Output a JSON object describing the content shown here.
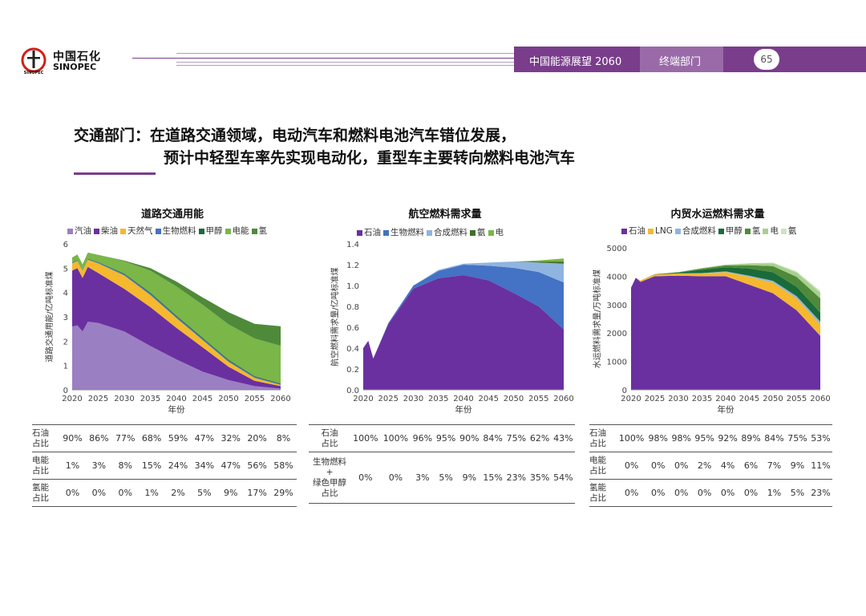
{
  "header": {
    "logo_cn": "中国石化",
    "logo_en": "SINOPEC",
    "logo_mark_text": "SINOPEC",
    "report_title": "中国能源展望 2060",
    "section": "终端部门",
    "page": "65",
    "accent": "#7a3d8c"
  },
  "title": {
    "line1": "交通部门：在道路交通领域，电动汽车和燃料电池汽车错位发展，",
    "line2": "预计中轻型车率先实现电动化，重型车主要转向燃料电池汽车"
  },
  "colors": {
    "汽油": "#9b7fc3",
    "柴油": "#6a30a0",
    "天然气": "#f5b82e",
    "生物燃料": "#4472c4",
    "甲醇": "#1a6b3a",
    "电能": "#7ab648",
    "氢": "#4f8a3a",
    "石油": "#6a30a0",
    "合成燃料": "#8fb4e0",
    "氨": "#3f6f2a",
    "电": "#7ab648",
    "LNG": "#f5b82e",
    "电2": "#a8d08d",
    "氨2": "#cde4bf"
  },
  "chart_data": [
    {
      "type": "area",
      "title": "道路交通用能",
      "ylabel": "道路交通用能/亿吨标准煤",
      "xlabel": "年份",
      "ylim": [
        0,
        6
      ],
      "yticks": [
        "0",
        "1",
        "2",
        "3",
        "4",
        "5",
        "6"
      ],
      "x": [
        2020,
        2021,
        2022,
        2023,
        2025,
        2030,
        2035,
        2040,
        2045,
        2050,
        2055,
        2060
      ],
      "xticks": [
        "2020",
        "2025",
        "2030",
        "2035",
        "2040",
        "2045",
        "2050",
        "2055",
        "2060"
      ],
      "legend": [
        "汽油",
        "柴油",
        "天然气",
        "生物燃料",
        "甲醇",
        "电能",
        "氢"
      ],
      "series": [
        {
          "name": "汽油",
          "values": [
            2.6,
            2.65,
            2.4,
            2.8,
            2.75,
            2.4,
            1.8,
            1.25,
            0.75,
            0.4,
            0.15,
            0.05
          ]
        },
        {
          "name": "柴油",
          "values": [
            2.3,
            2.35,
            2.2,
            2.25,
            2.05,
            1.75,
            1.6,
            1.3,
            1.0,
            0.55,
            0.22,
            0.1
          ]
        },
        {
          "name": "天然气",
          "values": [
            0.3,
            0.3,
            0.3,
            0.3,
            0.4,
            0.55,
            0.5,
            0.4,
            0.3,
            0.2,
            0.12,
            0.05
          ]
        },
        {
          "name": "生物燃料",
          "values": [
            0.02,
            0.02,
            0.02,
            0.02,
            0.03,
            0.05,
            0.06,
            0.06,
            0.06,
            0.05,
            0.04,
            0.03
          ]
        },
        {
          "name": "甲醇",
          "values": [
            0.02,
            0.02,
            0.02,
            0.02,
            0.02,
            0.03,
            0.04,
            0.04,
            0.04,
            0.04,
            0.03,
            0.03
          ]
        },
        {
          "name": "电能",
          "values": [
            0.2,
            0.22,
            0.22,
            0.25,
            0.3,
            0.5,
            0.9,
            1.2,
            1.35,
            1.45,
            1.55,
            1.55
          ]
        },
        {
          "name": "氢",
          "values": [
            0.0,
            0.0,
            0.0,
            0.0,
            0.0,
            0.03,
            0.1,
            0.2,
            0.3,
            0.5,
            0.6,
            0.8
          ]
        }
      ]
    },
    {
      "type": "area",
      "title": "航空燃料需求量",
      "ylabel": "航空燃料需求量/亿吨标准煤",
      "xlabel": "年份",
      "ylim": [
        0,
        1.4
      ],
      "yticks": [
        "0.0",
        "0.2",
        "0.4",
        "0.6",
        "0.8",
        "1.0",
        "1.2",
        "1.4"
      ],
      "x": [
        2020,
        2021,
        2022,
        2025,
        2030,
        2035,
        2040,
        2045,
        2050,
        2055,
        2060
      ],
      "xticks": [
        "2020",
        "2025",
        "2030",
        "2035",
        "2040",
        "2045",
        "2050",
        "2055",
        "2060"
      ],
      "legend": [
        "石油",
        "生物燃料",
        "合成燃料",
        "氨",
        "电"
      ],
      "series": [
        {
          "name": "石油",
          "values": [
            0.4,
            0.47,
            0.3,
            0.63,
            0.97,
            1.07,
            1.1,
            1.05,
            0.93,
            0.8,
            0.58
          ]
        },
        {
          "name": "生物燃料",
          "values": [
            0.0,
            0.0,
            0.0,
            0.01,
            0.03,
            0.07,
            0.1,
            0.14,
            0.24,
            0.33,
            0.45
          ]
        },
        {
          "name": "合成燃料",
          "values": [
            0.0,
            0.0,
            0.0,
            0.0,
            0.0,
            0.01,
            0.01,
            0.03,
            0.06,
            0.09,
            0.18
          ]
        },
        {
          "name": "氨",
          "values": [
            0.0,
            0.0,
            0.0,
            0.0,
            0.0,
            0.0,
            0.0,
            0.0,
            0.0,
            0.01,
            0.02
          ]
        },
        {
          "name": "电",
          "values": [
            0.0,
            0.0,
            0.0,
            0.0,
            0.0,
            0.0,
            0.0,
            0.0,
            0.0,
            0.01,
            0.03
          ]
        }
      ]
    },
    {
      "type": "area",
      "title": "内贸水运燃料需求量",
      "ylabel": "水运燃料需求量/万吨标准煤",
      "xlabel": "年份",
      "ylim": [
        0,
        5000
      ],
      "yticks": [
        "0",
        "1000",
        "2000",
        "3000",
        "4000",
        "5000"
      ],
      "x": [
        2020,
        2021,
        2022,
        2025,
        2030,
        2035,
        2040,
        2045,
        2050,
        2055,
        2060
      ],
      "xticks": [
        "2020",
        "2025",
        "2030",
        "2035",
        "2040",
        "2045",
        "2050",
        "2055",
        "2060"
      ],
      "legend": [
        "石油",
        "LNG",
        "合成燃料",
        "甲醇",
        "氢",
        "电",
        "氨"
      ],
      "series": [
        {
          "name": "石油",
          "values": [
            3600,
            3950,
            3800,
            4000,
            4020,
            4000,
            4000,
            3700,
            3400,
            2800,
            1900
          ]
        },
        {
          "name": "LNG",
          "values": [
            0,
            0,
            50,
            60,
            80,
            100,
            150,
            280,
            380,
            420,
            400
          ]
        },
        {
          "name": "合成燃料",
          "values": [
            0,
            0,
            0,
            0,
            0,
            10,
            20,
            40,
            60,
            80,
            100
          ]
        },
        {
          "name": "甲醇",
          "values": [
            0,
            0,
            0,
            10,
            30,
            120,
            150,
            250,
            300,
            330,
            320
          ]
        },
        {
          "name": "氢",
          "values": [
            0,
            0,
            0,
            0,
            10,
            40,
            60,
            120,
            220,
            350,
            500
          ]
        },
        {
          "name": "电",
          "values": [
            0,
            0,
            0,
            0,
            10,
            20,
            30,
            60,
            100,
            150,
            200
          ]
        },
        {
          "name": "氨",
          "values": [
            0,
            0,
            0,
            0,
            0,
            0,
            0,
            10,
            20,
            40,
            60
          ]
        }
      ]
    }
  ],
  "tables": [
    {
      "rows": [
        {
          "label": "石油\n占比",
          "values": [
            "90%",
            "86%",
            "77%",
            "68%",
            "59%",
            "47%",
            "32%",
            "20%",
            "8%"
          ]
        },
        {
          "label": "电能\n占比",
          "values": [
            "1%",
            "3%",
            "8%",
            "15%",
            "24%",
            "34%",
            "47%",
            "56%",
            "58%"
          ]
        },
        {
          "label": "氢能\n占比",
          "values": [
            "0%",
            "0%",
            "0%",
            "1%",
            "2%",
            "5%",
            "9%",
            "17%",
            "29%"
          ]
        }
      ]
    },
    {
      "rows": [
        {
          "label": "石油\n占比",
          "values": [
            "100%",
            "100%",
            "96%",
            "95%",
            "90%",
            "84%",
            "75%",
            "62%",
            "43%"
          ]
        },
        {
          "label": "生物燃料\n+\n绿色甲醇\n占比",
          "values": [
            "0%",
            "0%",
            "3%",
            "5%",
            "9%",
            "15%",
            "23%",
            "35%",
            "54%"
          ]
        }
      ]
    },
    {
      "rows": [
        {
          "label": "石油\n占比",
          "values": [
            "100%",
            "98%",
            "98%",
            "95%",
            "92%",
            "89%",
            "84%",
            "75%",
            "53%"
          ]
        },
        {
          "label": "电能\n占比",
          "values": [
            "0%",
            "0%",
            "0%",
            "2%",
            "4%",
            "6%",
            "7%",
            "9%",
            "11%"
          ]
        },
        {
          "label": "氢能\n占比",
          "values": [
            "0%",
            "0%",
            "0%",
            "0%",
            "0%",
            "0%",
            "1%",
            "5%",
            "23%"
          ]
        }
      ]
    }
  ]
}
